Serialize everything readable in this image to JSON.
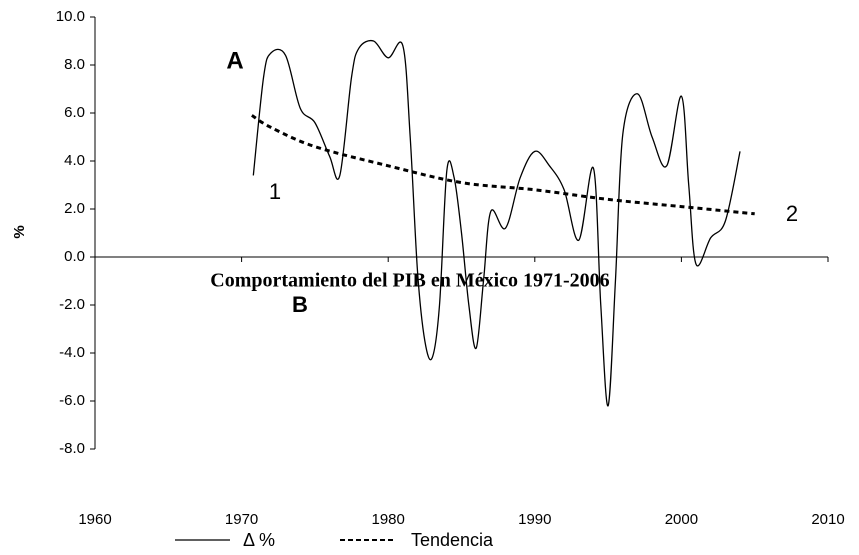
{
  "chart_data": {
    "type": "line",
    "title": "Comportamiento del PIB en México 1971-2006",
    "ylabel": "%",
    "annotations": [
      "A",
      "B",
      "1",
      "2"
    ],
    "xlim": [
      1960,
      2010
    ],
    "xticks": [
      1960,
      1970,
      1980,
      1990,
      2000,
      2010
    ],
    "ylim": [
      -8,
      10
    ],
    "yticks": [
      {
        "value": -8,
        "label": "-8.0"
      },
      {
        "value": -6,
        "label": "-6.0"
      },
      {
        "value": -4,
        "label": "-4.0"
      },
      {
        "value": -2,
        "label": "-2.0"
      },
      {
        "value": 0,
        "label": "0.0"
      },
      {
        "value": 2,
        "label": "2.0"
      },
      {
        "value": 4,
        "label": "4.0"
      },
      {
        "value": 6,
        "label": "6.0"
      },
      {
        "value": 8,
        "label": "8.0"
      },
      {
        "value": 10,
        "label": "10.0"
      }
    ],
    "series": [
      {
        "name": "Δ %",
        "color": "#000000",
        "style": "solid",
        "x": [
          1970.8,
          1971.5,
          1972,
          1973,
          1974,
          1975,
          1976,
          1976.7,
          1977.5,
          1978,
          1979,
          1980,
          1981,
          1981.5,
          1982,
          1982.5,
          1983,
          1983.5,
          1984,
          1984.5,
          1985,
          1985.5,
          1986,
          1986.5,
          1987,
          1988,
          1989,
          1990,
          1991,
          1992,
          1993,
          1994,
          1994.5,
          1995,
          1995.5,
          1996,
          1997,
          1998,
          1999,
          2000,
          2000.5,
          2001,
          2002,
          2003,
          2004
        ],
        "values": [
          3.4,
          7.5,
          8.5,
          8.4,
          6.2,
          5.6,
          4.2,
          3.4,
          7.5,
          8.7,
          9.0,
          8.3,
          8.8,
          5.0,
          -0.6,
          -3.5,
          -4.2,
          -2.0,
          3.6,
          3.3,
          1.0,
          -2.0,
          -3.8,
          -1.0,
          1.9,
          1.2,
          3.3,
          4.4,
          3.8,
          2.8,
          0.7,
          3.7,
          -2.0,
          -6.2,
          -1.0,
          5.1,
          6.8,
          5.0,
          3.8,
          6.7,
          3.0,
          -0.3,
          0.8,
          1.5,
          4.4
        ]
      },
      {
        "name": "Tendencia",
        "color": "#000000",
        "style": "dashed",
        "x": [
          1970.7,
          1972,
          1975,
          1980,
          1985,
          1990,
          1995,
          2000,
          2005
        ],
        "values": [
          5.9,
          5.4,
          4.6,
          3.8,
          3.1,
          2.8,
          2.4,
          2.1,
          1.8
        ]
      }
    ]
  }
}
